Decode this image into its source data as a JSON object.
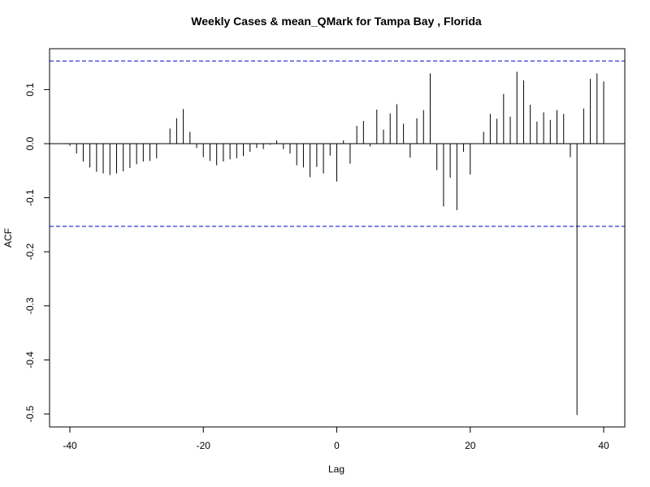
{
  "chart_data": {
    "type": "bar",
    "title": "Weekly Cases & mean_QMark for Tampa Bay , Florida",
    "xlabel": "Lag",
    "ylabel": "ACF",
    "xlim": [
      -40,
      40
    ],
    "ylim": [
      -0.5,
      0.15
    ],
    "x_ticks": [
      -40,
      -20,
      0,
      20,
      40
    ],
    "y_ticks": [
      -0.5,
      -0.4,
      -0.3,
      -0.2,
      -0.1,
      0.0,
      0.1
    ],
    "y_tick_labels": [
      "-0.5",
      "-0.4",
      "-0.3",
      "-0.2",
      "-0.1",
      "0.0",
      "0.1"
    ],
    "confidence_bound": 0.153,
    "confidence_line_color": "#0000cc",
    "bar_color": "#000000",
    "lags": [
      -40,
      -39,
      -38,
      -37,
      -36,
      -35,
      -34,
      -33,
      -32,
      -31,
      -30,
      -29,
      -28,
      -27,
      -26,
      -25,
      -24,
      -23,
      -22,
      -21,
      -20,
      -19,
      -18,
      -17,
      -16,
      -15,
      -14,
      -13,
      -12,
      -11,
      -10,
      -9,
      -8,
      -7,
      -6,
      -5,
      -4,
      -3,
      -2,
      -1,
      0,
      1,
      2,
      3,
      4,
      5,
      6,
      7,
      8,
      9,
      10,
      11,
      12,
      13,
      14,
      15,
      16,
      17,
      18,
      19,
      20,
      21,
      22,
      23,
      24,
      25,
      26,
      27,
      28,
      29,
      30,
      31,
      32,
      33,
      34,
      35,
      36,
      37,
      38,
      39,
      40
    ],
    "values": [
      -0.004,
      -0.018,
      -0.033,
      -0.044,
      -0.052,
      -0.055,
      -0.058,
      -0.055,
      -0.051,
      -0.045,
      -0.038,
      -0.033,
      -0.032,
      -0.027,
      0.0,
      0.028,
      0.047,
      0.064,
      0.022,
      -0.008,
      -0.025,
      -0.032,
      -0.04,
      -0.033,
      -0.029,
      -0.027,
      -0.023,
      -0.015,
      -0.008,
      -0.01,
      -0.002,
      0.006,
      -0.01,
      -0.018,
      -0.04,
      -0.044,
      -0.062,
      -0.043,
      -0.055,
      -0.022,
      -0.07,
      0.006,
      -0.037,
      0.033,
      0.042,
      -0.005,
      0.063,
      0.026,
      0.056,
      0.073,
      0.037,
      -0.026,
      0.047,
      0.062,
      0.13,
      -0.049,
      -0.116,
      -0.063,
      -0.123,
      -0.015,
      -0.057,
      0.0,
      0.022,
      0.055,
      0.046,
      0.092,
      0.05,
      0.133,
      0.117,
      0.072,
      0.041,
      0.058,
      0.044,
      0.062,
      0.055,
      -0.025,
      -0.502,
      0.065,
      0.12,
      0.13,
      0.115
    ]
  }
}
